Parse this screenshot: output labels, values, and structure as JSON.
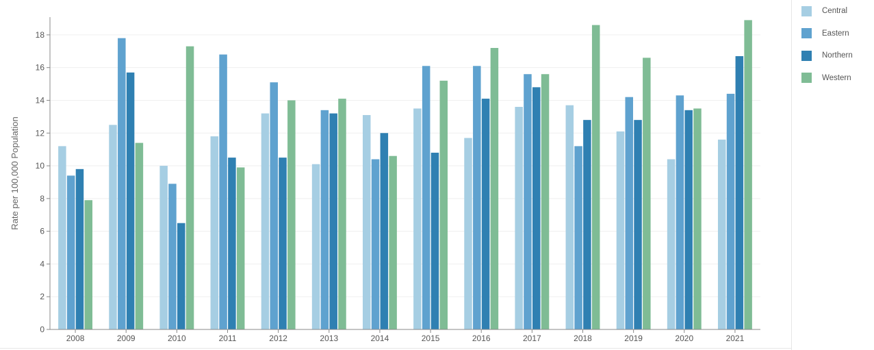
{
  "chart_data": {
    "type": "bar",
    "title": "",
    "xlabel": "",
    "ylabel": "Rate per 100,000 Population",
    "ylim": [
      0,
      19
    ],
    "yticks": [
      0,
      2,
      4,
      6,
      8,
      10,
      12,
      14,
      16,
      18
    ],
    "grid": true,
    "legend_position": "right",
    "categories": [
      "2008",
      "2009",
      "2010",
      "2011",
      "2012",
      "2013",
      "2014",
      "2015",
      "2016",
      "2017",
      "2018",
      "2019",
      "2020",
      "2021"
    ],
    "series": [
      {
        "name": "Central",
        "color": "#a6cee3",
        "values": [
          11.2,
          12.5,
          10.0,
          11.8,
          13.2,
          10.1,
          13.1,
          13.5,
          11.7,
          13.6,
          13.7,
          12.1,
          10.4,
          11.6
        ]
      },
      {
        "name": "Eastern",
        "color": "#5fa2cf",
        "values": [
          9.4,
          17.8,
          8.9,
          16.8,
          15.1,
          13.4,
          10.4,
          16.1,
          16.1,
          15.6,
          11.2,
          14.2,
          14.3,
          14.4
        ]
      },
      {
        "name": "Northern",
        "color": "#2f80b2",
        "values": [
          9.8,
          15.7,
          6.5,
          10.5,
          10.5,
          13.2,
          12.0,
          10.8,
          14.1,
          14.8,
          12.8,
          12.8,
          13.4,
          16.7
        ]
      },
      {
        "name": "Western",
        "color": "#7fbc95",
        "values": [
          7.9,
          11.4,
          17.3,
          9.9,
          14.0,
          14.1,
          10.6,
          15.2,
          17.2,
          15.6,
          18.6,
          16.6,
          13.5,
          18.9
        ]
      }
    ]
  }
}
